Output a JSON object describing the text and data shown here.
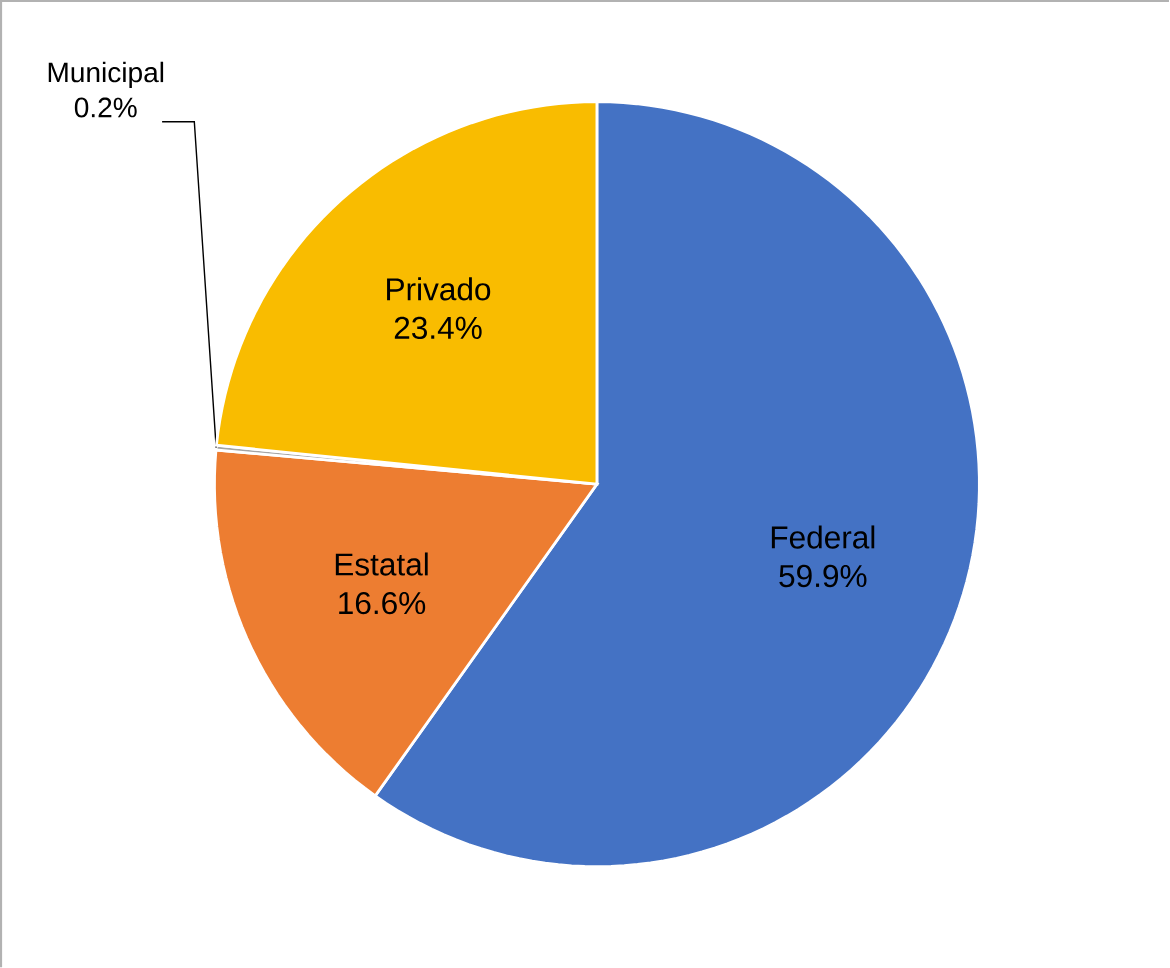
{
  "chart_data": {
    "type": "pie",
    "categories": [
      "Federal",
      "Estatal",
      "Municipal",
      "Privado"
    ],
    "values": [
      59.9,
      16.6,
      0.2,
      23.4
    ],
    "value_labels": [
      "59.9%",
      "16.6%",
      "0.2%",
      "23.4%"
    ],
    "colors": [
      "#4472c4",
      "#ed7d31",
      "#a5a5a5",
      "#f9bc00"
    ]
  }
}
